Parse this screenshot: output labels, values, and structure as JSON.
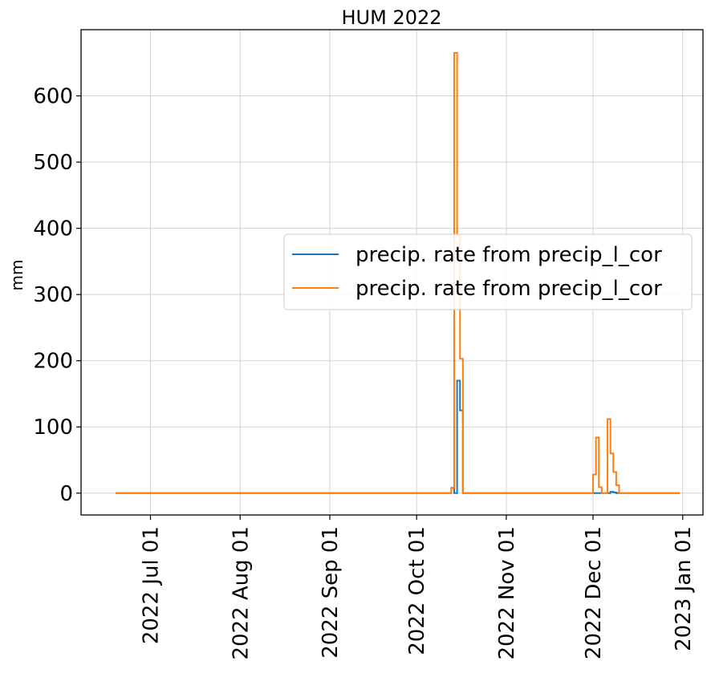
{
  "chart_data": {
    "type": "line",
    "drawstyle": "steps-post",
    "title": "HUM 2022",
    "xlabel": "",
    "ylabel": "mm",
    "xlim": [
      "2022-06-07",
      "2023-01-08"
    ],
    "ylim": [
      -33,
      700
    ],
    "grid": true,
    "legend_position": "center-right",
    "x_tick_labels": [
      "2022 Jul 01",
      "2022 Aug 01",
      "2022 Sep 01",
      "2022 Oct 01",
      "2022 Nov 01",
      "2022 Dec 01",
      "2023 Jan 01"
    ],
    "x_ticks": [
      "2022-07-01",
      "2022-08-01",
      "2022-09-01",
      "2022-10-01",
      "2022-11-01",
      "2022-12-01",
      "2023-01-01"
    ],
    "y_ticks": [
      0,
      100,
      200,
      300,
      400,
      500,
      600
    ],
    "series": [
      {
        "name": "precip. rate from precip_l_cor",
        "color": "#1f77b4",
        "points": [
          [
            "2022-06-19",
            0
          ],
          [
            "2022-10-13",
            8
          ],
          [
            "2022-10-14",
            0
          ],
          [
            "2022-10-15",
            170
          ],
          [
            "2022-10-16",
            125
          ],
          [
            "2022-10-17",
            0
          ],
          [
            "2022-12-07",
            2
          ],
          [
            "2022-12-08",
            1
          ],
          [
            "2022-12-09",
            0
          ],
          [
            "2022-12-31",
            0
          ]
        ]
      },
      {
        "name": "precip. rate from precip_l_cor",
        "color": "#ff7f0e",
        "points": [
          [
            "2022-06-19",
            0
          ],
          [
            "2022-10-13",
            8
          ],
          [
            "2022-10-14",
            665
          ],
          [
            "2022-10-15",
            390
          ],
          [
            "2022-10-16",
            203
          ],
          [
            "2022-10-17",
            0
          ],
          [
            "2022-12-01",
            28
          ],
          [
            "2022-12-02",
            84
          ],
          [
            "2022-12-03",
            9
          ],
          [
            "2022-12-04",
            0
          ],
          [
            "2022-12-06",
            112
          ],
          [
            "2022-12-07",
            60
          ],
          [
            "2022-12-08",
            32
          ],
          [
            "2022-12-09",
            12
          ],
          [
            "2022-12-10",
            0
          ],
          [
            "2022-12-31",
            0
          ]
        ]
      }
    ]
  }
}
